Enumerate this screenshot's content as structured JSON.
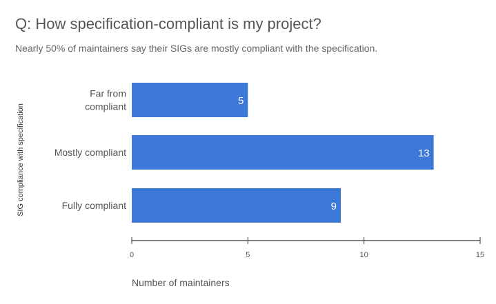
{
  "chart_data": {
    "type": "bar",
    "orientation": "horizontal",
    "title": "Q: How specification-compliant is my project?",
    "subtitle": "Nearly 50% of maintainers say their SIGs are mostly compliant with the specification.",
    "categories": [
      [
        "Far from",
        "compliant"
      ],
      [
        "Mostly compliant"
      ],
      [
        "Fully compliant"
      ]
    ],
    "values": [
      5,
      13,
      9
    ],
    "data_labels": [
      "5",
      "13",
      "9"
    ],
    "xlabel": "Number of maintainers",
    "ylabel": "SIG compliance with specification",
    "xlim": [
      0,
      15
    ],
    "xticks": [
      "0",
      "5",
      "10",
      "15"
    ],
    "grid": false,
    "bar_color": "#3c78d8"
  }
}
